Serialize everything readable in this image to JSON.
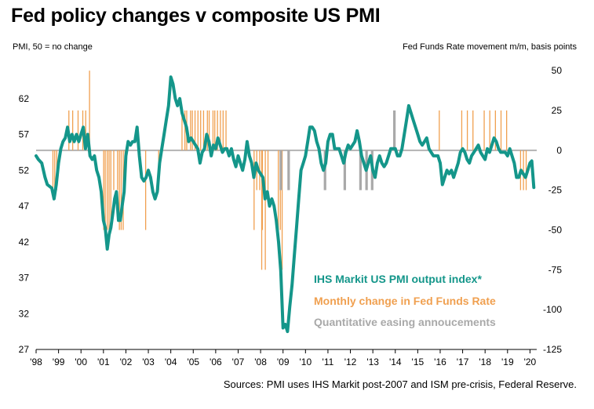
{
  "title": "Fed policy changes v composite US PMI",
  "source": "Sources: PMI uses IHS Markit post-2007 and ISM pre-crisis, Federal Reserve.",
  "colors": {
    "pmi": "#14968A",
    "fed": "#F0A050",
    "qe": "#A9A9A9",
    "zero": "#B3B3B3"
  },
  "chart_data": {
    "type": "line",
    "left_axis_label": "PMI, 50 = no change",
    "right_axis_label": "Fed Funds Rate movement  m/m, basis points",
    "left_ylim": [
      27,
      67
    ],
    "left_ticks": [
      "27",
      "32",
      "37",
      "42",
      "47",
      "52",
      "57",
      "62"
    ],
    "right_ylim": [
      -125,
      55
    ],
    "right_ticks": [
      "-125",
      "-100",
      "-75",
      "-50",
      "-25",
      "0",
      "25",
      "50"
    ],
    "x_ticks": [
      "'98",
      "'99",
      "'00",
      "'01",
      "'02",
      "'03",
      "'04",
      "'05",
      "'06",
      "'07",
      "'08",
      "'09",
      "'10",
      "'11",
      "'12",
      "'13",
      "'14",
      "'15",
      "'16",
      "'17",
      "'18",
      "'19",
      "'20"
    ],
    "x_range": [
      1998.0,
      2020.3
    ],
    "legend": [
      {
        "label": "IHS Markit US PMI  output  index*",
        "color": "#14968A"
      },
      {
        "label": "Monthly change in Fed Funds Rate",
        "color": "#F0A050"
      },
      {
        "label": "Quantitative easing annoucements",
        "color": "#A9A9A9"
      }
    ],
    "series": [
      {
        "kind": "line",
        "axis": "left",
        "points": [
          [
            1998.0,
            54.0
          ],
          [
            1998.1,
            53.5
          ],
          [
            1998.25,
            53.0
          ],
          [
            1998.4,
            51.0
          ],
          [
            1998.5,
            50.0
          ],
          [
            1998.7,
            49.5
          ],
          [
            1998.8,
            48.0
          ],
          [
            1998.9,
            50.0
          ],
          [
            1999.0,
            53.0
          ],
          [
            1999.1,
            55.0
          ],
          [
            1999.2,
            56.0
          ],
          [
            1999.3,
            56.5
          ],
          [
            1999.4,
            58.0
          ],
          [
            1999.5,
            56.0
          ],
          [
            1999.6,
            57.0
          ],
          [
            1999.7,
            56.0
          ],
          [
            1999.8,
            57.0
          ],
          [
            1999.9,
            56.0
          ],
          [
            2000.0,
            57.0
          ],
          [
            2000.1,
            58.0
          ],
          [
            2000.2,
            55.0
          ],
          [
            2000.3,
            57.0
          ],
          [
            2000.4,
            54.0
          ],
          [
            2000.5,
            53.5
          ],
          [
            2000.6,
            54.0
          ],
          [
            2000.7,
            52.0
          ],
          [
            2000.8,
            51.0
          ],
          [
            2000.9,
            49.0
          ],
          [
            2001.0,
            45.0
          ],
          [
            2001.08,
            44.0
          ],
          [
            2001.17,
            41.0
          ],
          [
            2001.25,
            43.0
          ],
          [
            2001.33,
            44.0
          ],
          [
            2001.42,
            46.0
          ],
          [
            2001.5,
            48.0
          ],
          [
            2001.58,
            49.0
          ],
          [
            2001.67,
            45.0
          ],
          [
            2001.75,
            45.0
          ],
          [
            2001.83,
            47.0
          ],
          [
            2001.92,
            49.0
          ],
          [
            2002.0,
            54.0
          ],
          [
            2002.1,
            56.0
          ],
          [
            2002.2,
            55.5
          ],
          [
            2002.3,
            56.0
          ],
          [
            2002.4,
            56.0
          ],
          [
            2002.5,
            58.0
          ],
          [
            2002.6,
            54.0
          ],
          [
            2002.7,
            51.0
          ],
          [
            2002.8,
            50.5
          ],
          [
            2002.9,
            51.0
          ],
          [
            2003.0,
            52.0
          ],
          [
            2003.1,
            51.0
          ],
          [
            2003.2,
            49.0
          ],
          [
            2003.3,
            48.0
          ],
          [
            2003.4,
            49.0
          ],
          [
            2003.5,
            53.0
          ],
          [
            2003.6,
            55.0
          ],
          [
            2003.7,
            57.0
          ],
          [
            2003.8,
            59.0
          ],
          [
            2003.9,
            61.0
          ],
          [
            2004.0,
            65.0
          ],
          [
            2004.1,
            64.0
          ],
          [
            2004.2,
            62.0
          ],
          [
            2004.3,
            61.0
          ],
          [
            2004.4,
            62.0
          ],
          [
            2004.5,
            60.0
          ],
          [
            2004.6,
            59.0
          ],
          [
            2004.7,
            58.0
          ],
          [
            2004.8,
            56.0
          ],
          [
            2004.9,
            56.5
          ],
          [
            2005.0,
            56.0
          ],
          [
            2005.1,
            55.5
          ],
          [
            2005.2,
            55.0
          ],
          [
            2005.3,
            53.0
          ],
          [
            2005.4,
            54.5
          ],
          [
            2005.5,
            55.0
          ],
          [
            2005.6,
            57.0
          ],
          [
            2005.7,
            56.0
          ],
          [
            2005.8,
            54.0
          ],
          [
            2005.9,
            55.5
          ],
          [
            2006.0,
            55.0
          ],
          [
            2006.1,
            56.5
          ],
          [
            2006.2,
            55.5
          ],
          [
            2006.3,
            54.5
          ],
          [
            2006.4,
            55.0
          ],
          [
            2006.5,
            55.0
          ],
          [
            2006.6,
            54.0
          ],
          [
            2006.7,
            55.0
          ],
          [
            2006.8,
            53.5
          ],
          [
            2006.9,
            52.5
          ],
          [
            2007.0,
            54.0
          ],
          [
            2007.1,
            53.0
          ],
          [
            2007.2,
            52.0
          ],
          [
            2007.3,
            53.5
          ],
          [
            2007.4,
            56.0
          ],
          [
            2007.5,
            54.0
          ],
          [
            2007.6,
            53.0
          ],
          [
            2007.7,
            51.0
          ],
          [
            2007.8,
            53.0
          ],
          [
            2007.9,
            52.0
          ],
          [
            2008.0,
            51.5
          ],
          [
            2008.1,
            51.0
          ],
          [
            2008.2,
            48.0
          ],
          [
            2008.3,
            49.0
          ],
          [
            2008.4,
            47.0
          ],
          [
            2008.5,
            48.0
          ],
          [
            2008.6,
            47.0
          ],
          [
            2008.7,
            45.0
          ],
          [
            2008.8,
            42.0
          ],
          [
            2008.9,
            38.0
          ],
          [
            2009.0,
            30.0
          ],
          [
            2009.1,
            30.5
          ],
          [
            2009.2,
            29.5
          ],
          [
            2009.3,
            33.0
          ],
          [
            2009.4,
            36.0
          ],
          [
            2009.5,
            40.0
          ],
          [
            2009.6,
            44.0
          ],
          [
            2009.7,
            48.0
          ],
          [
            2009.8,
            52.0
          ],
          [
            2009.9,
            53.0
          ],
          [
            2010.0,
            54.0
          ],
          [
            2010.1,
            56.0
          ],
          [
            2010.2,
            58.0
          ],
          [
            2010.3,
            58.0
          ],
          [
            2010.4,
            57.5
          ],
          [
            2010.5,
            56.0
          ],
          [
            2010.6,
            55.0
          ],
          [
            2010.7,
            53.0
          ],
          [
            2010.8,
            52.0
          ],
          [
            2010.9,
            53.0
          ],
          [
            2011.0,
            56.0
          ],
          [
            2011.1,
            57.0
          ],
          [
            2011.2,
            57.0
          ],
          [
            2011.3,
            55.0
          ],
          [
            2011.4,
            55.0
          ],
          [
            2011.5,
            55.0
          ],
          [
            2011.6,
            54.0
          ],
          [
            2011.7,
            53.0
          ],
          [
            2011.8,
            54.5
          ],
          [
            2011.9,
            55.5
          ],
          [
            2012.0,
            55.0
          ],
          [
            2012.1,
            55.5
          ],
          [
            2012.2,
            56.0
          ],
          [
            2012.3,
            57.5
          ],
          [
            2012.4,
            56.0
          ],
          [
            2012.5,
            54.0
          ],
          [
            2012.6,
            53.0
          ],
          [
            2012.7,
            52.0
          ],
          [
            2012.8,
            53.0
          ],
          [
            2012.9,
            54.0
          ],
          [
            2013.0,
            52.0
          ],
          [
            2013.1,
            51.0
          ],
          [
            2013.2,
            53.0
          ],
          [
            2013.3,
            54.0
          ],
          [
            2013.4,
            53.0
          ],
          [
            2013.5,
            52.5
          ],
          [
            2013.6,
            53.0
          ],
          [
            2013.7,
            54.0
          ],
          [
            2013.8,
            55.0
          ],
          [
            2013.9,
            55.0
          ],
          [
            2014.0,
            55.0
          ],
          [
            2014.1,
            54.0
          ],
          [
            2014.2,
            54.0
          ],
          [
            2014.3,
            55.0
          ],
          [
            2014.4,
            57.0
          ],
          [
            2014.5,
            59.0
          ],
          [
            2014.6,
            61.0
          ],
          [
            2014.7,
            60.0
          ],
          [
            2014.8,
            59.0
          ],
          [
            2014.9,
            58.0
          ],
          [
            2015.0,
            57.0
          ],
          [
            2015.1,
            56.0
          ],
          [
            2015.2,
            55.5
          ],
          [
            2015.3,
            56.0
          ],
          [
            2015.4,
            56.5
          ],
          [
            2015.5,
            55.0
          ],
          [
            2015.6,
            54.5
          ],
          [
            2015.7,
            54.0
          ],
          [
            2015.8,
            54.0
          ],
          [
            2015.9,
            54.0
          ],
          [
            2016.0,
            53.0
          ],
          [
            2016.1,
            50.0
          ],
          [
            2016.2,
            51.0
          ],
          [
            2016.3,
            52.0
          ],
          [
            2016.4,
            51.5
          ],
          [
            2016.5,
            52.0
          ],
          [
            2016.6,
            51.0
          ],
          [
            2016.7,
            52.0
          ],
          [
            2016.8,
            53.0
          ],
          [
            2016.9,
            54.5
          ],
          [
            2017.0,
            55.0
          ],
          [
            2017.1,
            54.5
          ],
          [
            2017.2,
            53.5
          ],
          [
            2017.3,
            53.0
          ],
          [
            2017.4,
            54.0
          ],
          [
            2017.5,
            54.5
          ],
          [
            2017.6,
            55.0
          ],
          [
            2017.7,
            55.5
          ],
          [
            2017.8,
            54.5
          ],
          [
            2017.9,
            54.0
          ],
          [
            2018.0,
            53.5
          ],
          [
            2018.1,
            55.0
          ],
          [
            2018.2,
            54.5
          ],
          [
            2018.3,
            55.5
          ],
          [
            2018.4,
            56.5
          ],
          [
            2018.5,
            56.0
          ],
          [
            2018.6,
            55.0
          ],
          [
            2018.7,
            54.5
          ],
          [
            2018.8,
            54.5
          ],
          [
            2018.9,
            54.5
          ],
          [
            2019.0,
            54.0
          ],
          [
            2019.1,
            55.0
          ],
          [
            2019.2,
            54.0
          ],
          [
            2019.3,
            53.0
          ],
          [
            2019.4,
            51.0
          ],
          [
            2019.5,
            51.0
          ],
          [
            2019.6,
            52.0
          ],
          [
            2019.7,
            51.5
          ],
          [
            2019.8,
            51.0
          ],
          [
            2019.9,
            52.0
          ],
          [
            2020.0,
            53.0
          ],
          [
            2020.08,
            53.3
          ],
          [
            2020.17,
            49.6
          ]
        ]
      },
      {
        "kind": "bars",
        "axis": "right",
        "name": "Monthly change in Fed Funds Rate",
        "bars": [
          [
            1998.75,
            -25
          ],
          [
            1998.83,
            -25
          ],
          [
            1998.92,
            -25
          ],
          [
            1999.46,
            25
          ],
          [
            1999.63,
            25
          ],
          [
            1999.87,
            25
          ],
          [
            2000.08,
            25
          ],
          [
            2000.21,
            25
          ],
          [
            2000.38,
            50
          ],
          [
            2001.01,
            -50
          ],
          [
            2001.08,
            -50
          ],
          [
            2001.17,
            -50
          ],
          [
            2001.25,
            -50
          ],
          [
            2001.33,
            -50
          ],
          [
            2001.46,
            -25
          ],
          [
            2001.63,
            -25
          ],
          [
            2001.71,
            -50
          ],
          [
            2001.79,
            -50
          ],
          [
            2001.88,
            -50
          ],
          [
            2001.96,
            -25
          ],
          [
            2002.88,
            -50
          ],
          [
            2003.46,
            -25
          ],
          [
            2004.5,
            25
          ],
          [
            2004.63,
            25
          ],
          [
            2004.71,
            25
          ],
          [
            2004.88,
            25
          ],
          [
            2004.96,
            25
          ],
          [
            2005.08,
            25
          ],
          [
            2005.21,
            25
          ],
          [
            2005.33,
            25
          ],
          [
            2005.46,
            25
          ],
          [
            2005.63,
            25
          ],
          [
            2005.71,
            25
          ],
          [
            2005.88,
            25
          ],
          [
            2005.96,
            25
          ],
          [
            2006.08,
            25
          ],
          [
            2006.21,
            25
          ],
          [
            2006.33,
            25
          ],
          [
            2006.46,
            25
          ],
          [
            2007.71,
            -50
          ],
          [
            2007.83,
            -25
          ],
          [
            2007.96,
            -25
          ],
          [
            2008.05,
            -75
          ],
          [
            2008.08,
            -50
          ],
          [
            2008.21,
            -75
          ],
          [
            2008.33,
            -25
          ],
          [
            2008.79,
            -50
          ],
          [
            2008.88,
            -50
          ],
          [
            2008.96,
            -75
          ],
          [
            2015.96,
            25
          ],
          [
            2016.96,
            25
          ],
          [
            2017.21,
            25
          ],
          [
            2017.46,
            25
          ],
          [
            2017.96,
            25
          ],
          [
            2018.21,
            25
          ],
          [
            2018.46,
            25
          ],
          [
            2018.71,
            25
          ],
          [
            2018.96,
            25
          ],
          [
            2019.58,
            -25
          ],
          [
            2019.71,
            -25
          ],
          [
            2019.83,
            -25
          ]
        ]
      },
      {
        "kind": "bars",
        "axis": "right",
        "name": "Quantitative easing annoucements",
        "bars": [
          [
            2008.9,
            -25
          ],
          [
            2009.25,
            -25
          ],
          [
            2010.87,
            -25
          ],
          [
            2011.75,
            -25
          ],
          [
            2012.45,
            -25
          ],
          [
            2012.72,
            -25
          ],
          [
            2012.97,
            -25
          ],
          [
            2013.96,
            25
          ]
        ]
      }
    ]
  }
}
